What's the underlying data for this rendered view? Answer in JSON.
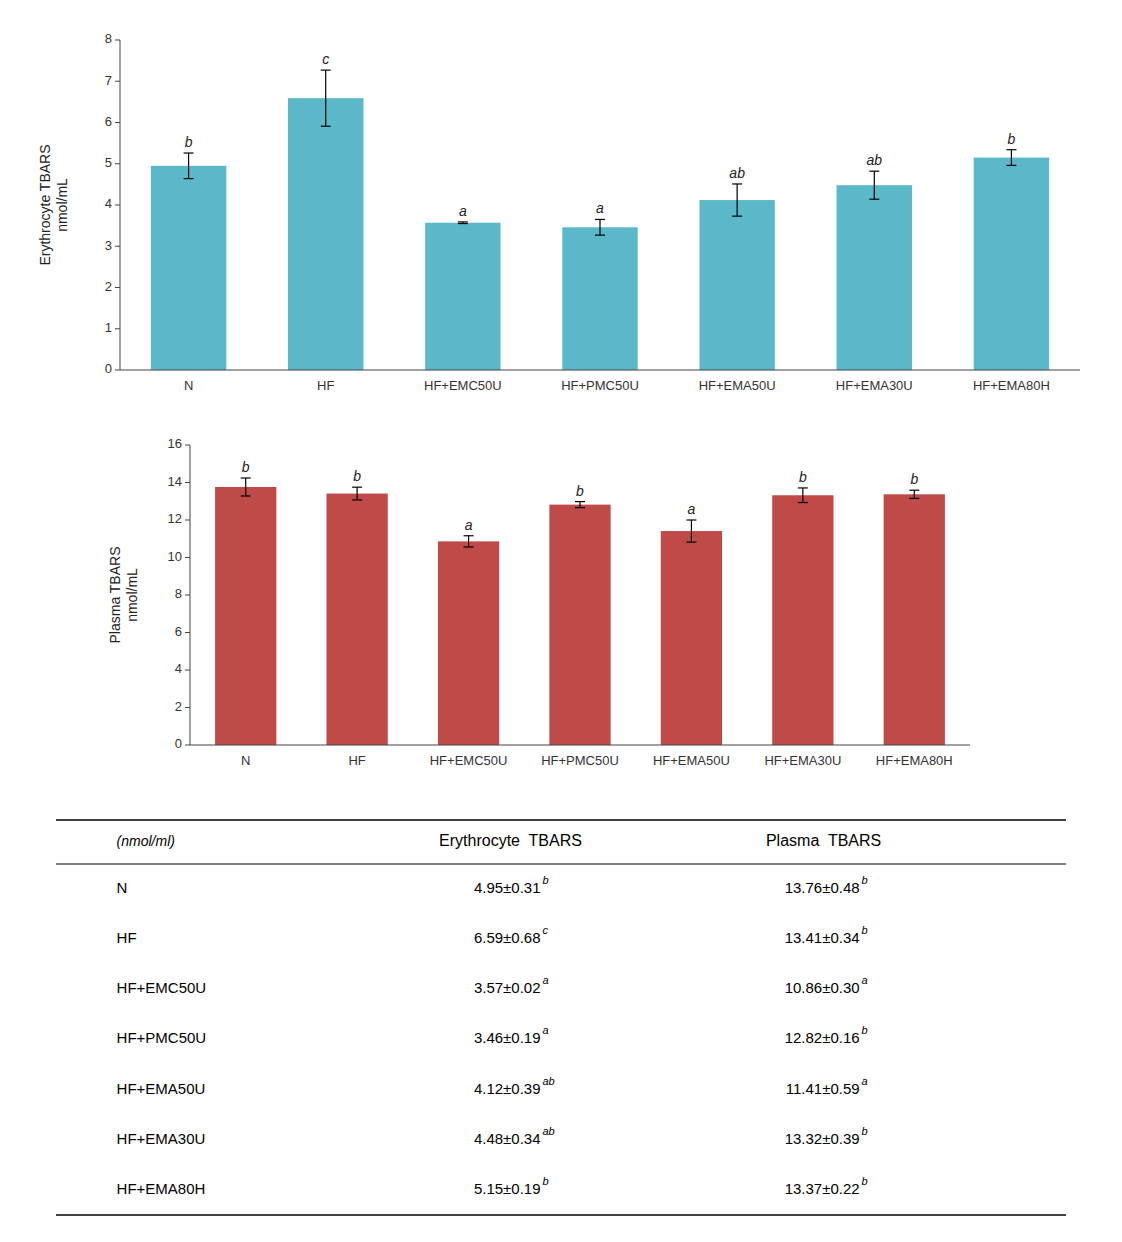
{
  "chart_data": [
    {
      "type": "bar",
      "categories": [
        "N",
        "HF",
        "HF+EMC50U",
        "HF+PMC50U",
        "HF+EMA50U",
        "HF+EMA30U",
        "HF+EMA80H"
      ],
      "values": [
        4.95,
        6.59,
        3.57,
        3.46,
        4.12,
        4.48,
        5.15
      ],
      "errors": [
        0.31,
        0.68,
        0.02,
        0.19,
        0.39,
        0.34,
        0.19
      ],
      "annotations": [
        "b",
        "c",
        "a",
        "a",
        "ab",
        "ab",
        "b"
      ],
      "color": "#5BB8C8",
      "y_label": "Erythrocyte TBARS\nnmol/mL",
      "ylim": [
        0,
        8
      ],
      "yticks": [
        0,
        1,
        2,
        3,
        4,
        5,
        6,
        7,
        8
      ],
      "grid": false
    },
    {
      "type": "bar",
      "categories": [
        "N",
        "HF",
        "HF+EMC50U",
        "HF+PMC50U",
        "HF+EMA50U",
        "HF+EMA30U",
        "HF+EMA80H"
      ],
      "values": [
        13.76,
        13.41,
        10.86,
        12.82,
        11.41,
        13.32,
        13.37
      ],
      "errors": [
        0.48,
        0.34,
        0.3,
        0.16,
        0.59,
        0.39,
        0.22
      ],
      "annotations": [
        "b",
        "b",
        "a",
        "b",
        "a",
        "b",
        "b"
      ],
      "color": "#BE4B48",
      "y_label": "Plasma TBARS\nnmol/mL",
      "ylim": [
        0,
        16
      ],
      "yticks": [
        0,
        2,
        4,
        6,
        8,
        10,
        12,
        14,
        16
      ],
      "grid": false
    },
    {
      "type": "table",
      "columns": [
        "(nmol/ml)",
        "Erythrocyte  TBARS",
        "Plasma  TBARS"
      ],
      "rows": [
        [
          "N",
          "4.95±0.31",
          "b",
          "13.76±0.48",
          "b"
        ],
        [
          "HF",
          "6.59±0.68",
          "c",
          "13.41±0.34",
          "b"
        ],
        [
          "HF+EMC50U",
          "3.57±0.02",
          "a",
          "10.86±0.30",
          "a"
        ],
        [
          "HF+PMC50U",
          "3.46±0.19",
          "a",
          "12.82±0.16",
          "b"
        ],
        [
          "HF+EMA50U",
          "4.12±0.39",
          "ab",
          "11.41±0.59",
          "a"
        ],
        [
          "HF+EMA30U",
          "4.48±0.34",
          "ab",
          "13.32±0.39",
          "b"
        ],
        [
          "HF+EMA80H",
          "5.15±0.19",
          "b",
          "13.37±0.22",
          "b"
        ]
      ]
    }
  ]
}
